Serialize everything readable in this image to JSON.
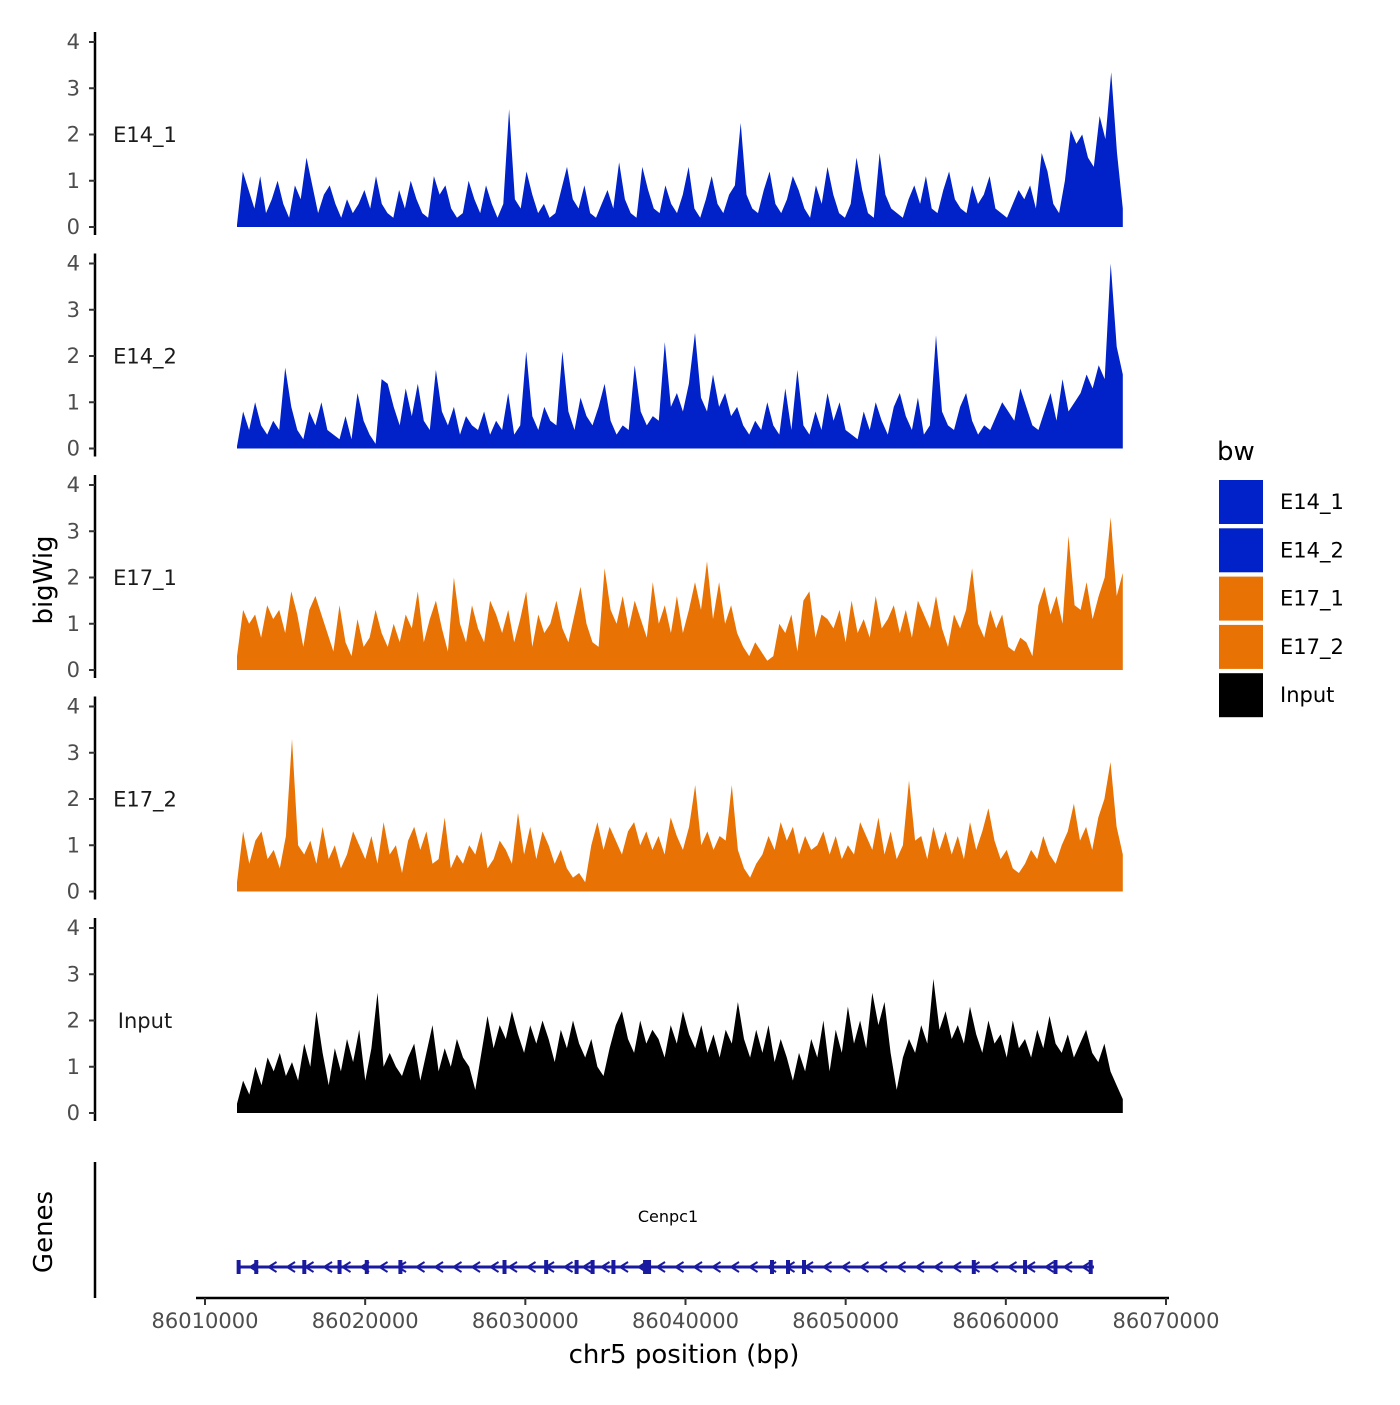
{
  "chart_data": {
    "type": "area",
    "chromosome": "chr5",
    "x_range": [
      86012000,
      86067300
    ],
    "xlabel": "chr5 position (bp)",
    "x_ticks": [
      86010000,
      86020000,
      86030000,
      86040000,
      86050000,
      86060000,
      86070000
    ],
    "x_tick_labels": [
      "86010000",
      "86020000",
      "86030000",
      "86040000",
      "86050000",
      "86060000",
      "86070000"
    ],
    "ylabel": "bigWig",
    "ylim": [
      0,
      4.2
    ],
    "y_ticks": [
      0,
      1,
      2,
      3,
      4
    ],
    "y_tick_labels": [
      "0",
      "1",
      "2",
      "3",
      "4"
    ],
    "series": [
      {
        "name": "E14_1",
        "color": "#0022c8",
        "values": [
          0.05,
          1.2,
          0.8,
          0.4,
          1.1,
          0.3,
          0.6,
          1.0,
          0.5,
          0.2,
          0.9,
          0.6,
          1.5,
          0.9,
          0.3,
          0.7,
          0.9,
          0.5,
          0.2,
          0.6,
          0.3,
          0.5,
          0.8,
          0.4,
          1.1,
          0.5,
          0.3,
          0.2,
          0.8,
          0.4,
          1.0,
          0.6,
          0.3,
          0.2,
          1.1,
          0.7,
          0.9,
          0.4,
          0.2,
          0.3,
          1.0,
          0.6,
          0.3,
          0.9,
          0.5,
          0.2,
          0.5,
          2.55,
          0.6,
          0.4,
          1.2,
          0.7,
          0.3,
          0.5,
          0.2,
          0.3,
          0.8,
          1.3,
          0.6,
          0.4,
          0.9,
          0.3,
          0.2,
          0.5,
          0.8,
          0.4,
          1.4,
          0.6,
          0.3,
          0.2,
          1.3,
          0.8,
          0.4,
          0.3,
          0.9,
          0.5,
          0.3,
          0.7,
          1.3,
          0.4,
          0.2,
          0.6,
          1.1,
          0.5,
          0.3,
          0.7,
          0.9,
          2.25,
          0.7,
          0.4,
          0.3,
          0.8,
          1.2,
          0.5,
          0.3,
          0.6,
          1.1,
          0.8,
          0.4,
          0.2,
          0.9,
          0.5,
          1.3,
          0.7,
          0.3,
          0.2,
          0.5,
          1.5,
          0.8,
          0.3,
          0.2,
          1.6,
          0.7,
          0.4,
          0.3,
          0.2,
          0.6,
          0.9,
          0.5,
          1.1,
          0.4,
          0.3,
          0.8,
          1.2,
          0.6,
          0.4,
          0.3,
          0.9,
          0.5,
          0.7,
          1.1,
          0.4,
          0.3,
          0.2,
          0.5,
          0.8,
          0.6,
          0.9,
          0.4,
          1.6,
          1.2,
          0.5,
          0.3,
          1.0,
          2.1,
          1.8,
          2.0,
          1.5,
          1.3,
          2.4,
          1.9,
          3.35,
          1.6,
          0.4
        ]
      },
      {
        "name": "E14_2",
        "color": "#0022c8",
        "values": [
          0.05,
          0.8,
          0.4,
          1.0,
          0.5,
          0.3,
          0.6,
          0.4,
          1.75,
          0.9,
          0.4,
          0.2,
          0.8,
          0.5,
          1.0,
          0.4,
          0.3,
          0.2,
          0.7,
          0.2,
          1.2,
          0.6,
          0.3,
          0.1,
          1.5,
          1.4,
          0.9,
          0.5,
          1.3,
          0.7,
          1.4,
          0.6,
          0.4,
          1.7,
          0.8,
          0.5,
          0.9,
          0.3,
          0.7,
          0.5,
          0.4,
          0.8,
          0.3,
          0.6,
          0.4,
          1.2,
          0.3,
          0.5,
          2.1,
          0.7,
          0.4,
          0.9,
          0.6,
          0.5,
          2.1,
          0.8,
          0.4,
          1.1,
          0.7,
          0.5,
          0.9,
          1.4,
          0.6,
          0.3,
          0.5,
          0.4,
          1.8,
          0.8,
          0.5,
          0.7,
          0.6,
          2.3,
          0.9,
          1.2,
          0.8,
          1.4,
          2.5,
          1.1,
          0.8,
          1.6,
          0.9,
          1.2,
          0.7,
          0.9,
          0.5,
          0.3,
          0.6,
          0.4,
          1.0,
          0.5,
          0.3,
          1.3,
          0.4,
          1.7,
          0.5,
          0.3,
          0.8,
          0.4,
          1.2,
          0.6,
          1.0,
          0.4,
          0.3,
          0.2,
          0.8,
          0.4,
          1.0,
          0.6,
          0.3,
          0.9,
          1.2,
          0.7,
          0.4,
          1.1,
          0.3,
          0.5,
          2.45,
          0.8,
          0.5,
          0.4,
          0.9,
          1.2,
          0.6,
          0.3,
          0.5,
          0.4,
          0.7,
          1.0,
          0.8,
          0.6,
          1.3,
          0.9,
          0.5,
          0.4,
          0.8,
          1.2,
          0.6,
          1.5,
          0.8,
          1.0,
          1.2,
          1.6,
          1.3,
          1.8,
          1.5,
          4.0,
          2.2,
          1.6
        ]
      },
      {
        "name": "E17_1",
        "color": "#e87304",
        "values": [
          0.3,
          1.3,
          1.0,
          1.2,
          0.7,
          1.4,
          1.1,
          1.3,
          0.8,
          1.7,
          1.2,
          0.5,
          1.3,
          1.6,
          1.2,
          0.8,
          0.4,
          1.4,
          0.6,
          0.3,
          1.1,
          0.5,
          0.7,
          1.3,
          0.8,
          0.5,
          1.0,
          0.6,
          1.2,
          0.9,
          1.7,
          0.6,
          1.1,
          1.5,
          0.9,
          0.4,
          2.0,
          1.0,
          0.6,
          1.4,
          0.9,
          0.6,
          1.5,
          1.2,
          0.8,
          1.3,
          0.6,
          1.1,
          1.7,
          0.5,
          1.2,
          0.8,
          1.0,
          1.5,
          0.9,
          0.6,
          1.2,
          1.8,
          1.0,
          0.6,
          0.5,
          2.2,
          1.3,
          1.0,
          1.6,
          0.9,
          1.5,
          1.1,
          0.7,
          1.9,
          1.0,
          1.4,
          0.8,
          1.6,
          0.8,
          1.3,
          1.9,
          1.3,
          2.35,
          1.1,
          1.9,
          1.0,
          1.4,
          0.8,
          0.5,
          0.3,
          0.6,
          0.4,
          0.2,
          0.3,
          1.0,
          0.8,
          1.2,
          0.4,
          1.5,
          1.7,
          0.7,
          1.2,
          1.1,
          0.9,
          1.3,
          0.6,
          1.5,
          0.8,
          1.1,
          0.7,
          1.6,
          0.9,
          1.1,
          1.4,
          0.8,
          1.3,
          0.7,
          1.5,
          1.2,
          0.9,
          1.6,
          0.9,
          0.5,
          1.2,
          0.9,
          1.3,
          2.2,
          1.0,
          0.7,
          1.3,
          0.9,
          1.2,
          0.5,
          0.4,
          0.7,
          0.6,
          0.3,
          1.4,
          1.8,
          1.2,
          1.6,
          1.0,
          2.9,
          1.4,
          1.3,
          1.9,
          1.1,
          1.6,
          2.0,
          3.3,
          1.6,
          2.1
        ]
      },
      {
        "name": "E17_2",
        "color": "#e87304",
        "values": [
          0.2,
          1.3,
          0.6,
          1.1,
          1.3,
          0.7,
          0.9,
          0.5,
          1.2,
          3.3,
          1.0,
          0.8,
          1.1,
          0.6,
          1.4,
          0.7,
          1.0,
          0.5,
          0.8,
          1.3,
          1.0,
          0.7,
          1.2,
          0.6,
          1.5,
          0.8,
          1.0,
          0.4,
          1.1,
          1.4,
          0.9,
          1.3,
          0.6,
          0.7,
          1.6,
          0.5,
          0.8,
          0.6,
          1.0,
          0.8,
          1.3,
          0.5,
          0.7,
          1.1,
          0.9,
          0.6,
          1.7,
          0.8,
          1.4,
          0.7,
          1.3,
          1.0,
          0.6,
          0.9,
          0.5,
          0.3,
          0.4,
          0.2,
          1.0,
          1.5,
          0.9,
          1.4,
          1.1,
          0.8,
          1.3,
          1.5,
          1.0,
          1.3,
          0.9,
          1.2,
          0.8,
          1.6,
          1.2,
          0.9,
          1.4,
          2.3,
          1.0,
          1.3,
          0.9,
          1.2,
          1.1,
          2.3,
          0.9,
          0.5,
          0.3,
          0.6,
          0.8,
          1.2,
          0.9,
          1.5,
          1.1,
          1.4,
          0.8,
          1.2,
          0.9,
          1.0,
          1.3,
          0.8,
          1.2,
          0.7,
          1.0,
          0.8,
          1.5,
          1.2,
          0.9,
          1.6,
          0.8,
          1.3,
          0.7,
          1.0,
          2.4,
          1.1,
          1.2,
          0.7,
          1.4,
          0.9,
          1.3,
          0.8,
          1.2,
          0.7,
          1.5,
          0.9,
          1.3,
          1.8,
          1.1,
          0.7,
          0.9,
          0.5,
          0.4,
          0.6,
          0.9,
          0.7,
          1.2,
          0.8,
          0.6,
          1.0,
          1.3,
          1.9,
          1.1,
          1.4,
          0.9,
          1.6,
          2.0,
          2.8,
          1.4,
          0.8
        ]
      },
      {
        "name": "Input",
        "color": "#000000",
        "values": [
          0.2,
          0.7,
          0.4,
          1.0,
          0.6,
          1.2,
          0.9,
          1.3,
          0.8,
          1.1,
          0.7,
          1.5,
          1.0,
          2.2,
          1.3,
          0.6,
          1.4,
          0.9,
          1.6,
          1.1,
          1.8,
          0.7,
          1.4,
          2.6,
          1.0,
          1.3,
          1.0,
          0.8,
          1.2,
          1.5,
          0.7,
          1.3,
          1.9,
          0.9,
          1.4,
          1.0,
          1.6,
          1.2,
          1.0,
          0.5,
          1.3,
          2.1,
          1.4,
          1.9,
          1.6,
          2.2,
          1.7,
          1.3,
          1.9,
          1.5,
          2.0,
          1.6,
          1.1,
          1.8,
          1.4,
          2.0,
          1.5,
          1.2,
          1.6,
          1.0,
          0.8,
          1.4,
          1.9,
          2.2,
          1.6,
          1.3,
          2.0,
          1.5,
          1.8,
          1.6,
          1.2,
          1.9,
          1.5,
          2.2,
          1.7,
          1.4,
          1.9,
          1.3,
          1.7,
          1.2,
          1.8,
          1.5,
          2.4,
          1.6,
          1.2,
          1.8,
          1.3,
          1.9,
          1.1,
          1.6,
          1.2,
          0.7,
          1.3,
          0.9,
          1.6,
          1.2,
          2.0,
          0.9,
          1.8,
          1.3,
          2.3,
          1.5,
          2.0,
          1.4,
          2.6,
          1.9,
          2.4,
          1.3,
          0.5,
          1.2,
          1.6,
          1.3,
          1.9,
          1.5,
          2.9,
          1.8,
          2.2,
          1.6,
          1.9,
          1.5,
          2.3,
          1.7,
          1.3,
          2.0,
          1.5,
          1.7,
          1.2,
          2.0,
          1.4,
          1.6,
          1.2,
          1.8,
          1.4,
          2.1,
          1.5,
          1.3,
          1.7,
          1.2,
          1.5,
          1.8,
          1.3,
          1.1,
          1.5,
          0.9,
          0.6,
          0.3
        ]
      }
    ],
    "gene_track": {
      "title": "Genes",
      "gene_name": "Cenpc1",
      "start": 86012000,
      "end": 86065500,
      "strand": "-",
      "color": "#1a1aa0",
      "exons": [
        86012100,
        86013200,
        86016200,
        86018400,
        86020100,
        86022200,
        86028700,
        86031300,
        86033200,
        86034200,
        86035500,
        86037600,
        86045400,
        86046400,
        86047400,
        86058000,
        86061200,
        86063100,
        86065300
      ]
    },
    "legend": {
      "title": "bw",
      "position": "right",
      "entries": [
        {
          "label": "E14_1",
          "color": "#0022c8"
        },
        {
          "label": "E14_2",
          "color": "#0022c8"
        },
        {
          "label": "E17_1",
          "color": "#e87304"
        },
        {
          "label": "E17_2",
          "color": "#e87304"
        },
        {
          "label": "Input",
          "color": "#000000"
        }
      ]
    }
  }
}
